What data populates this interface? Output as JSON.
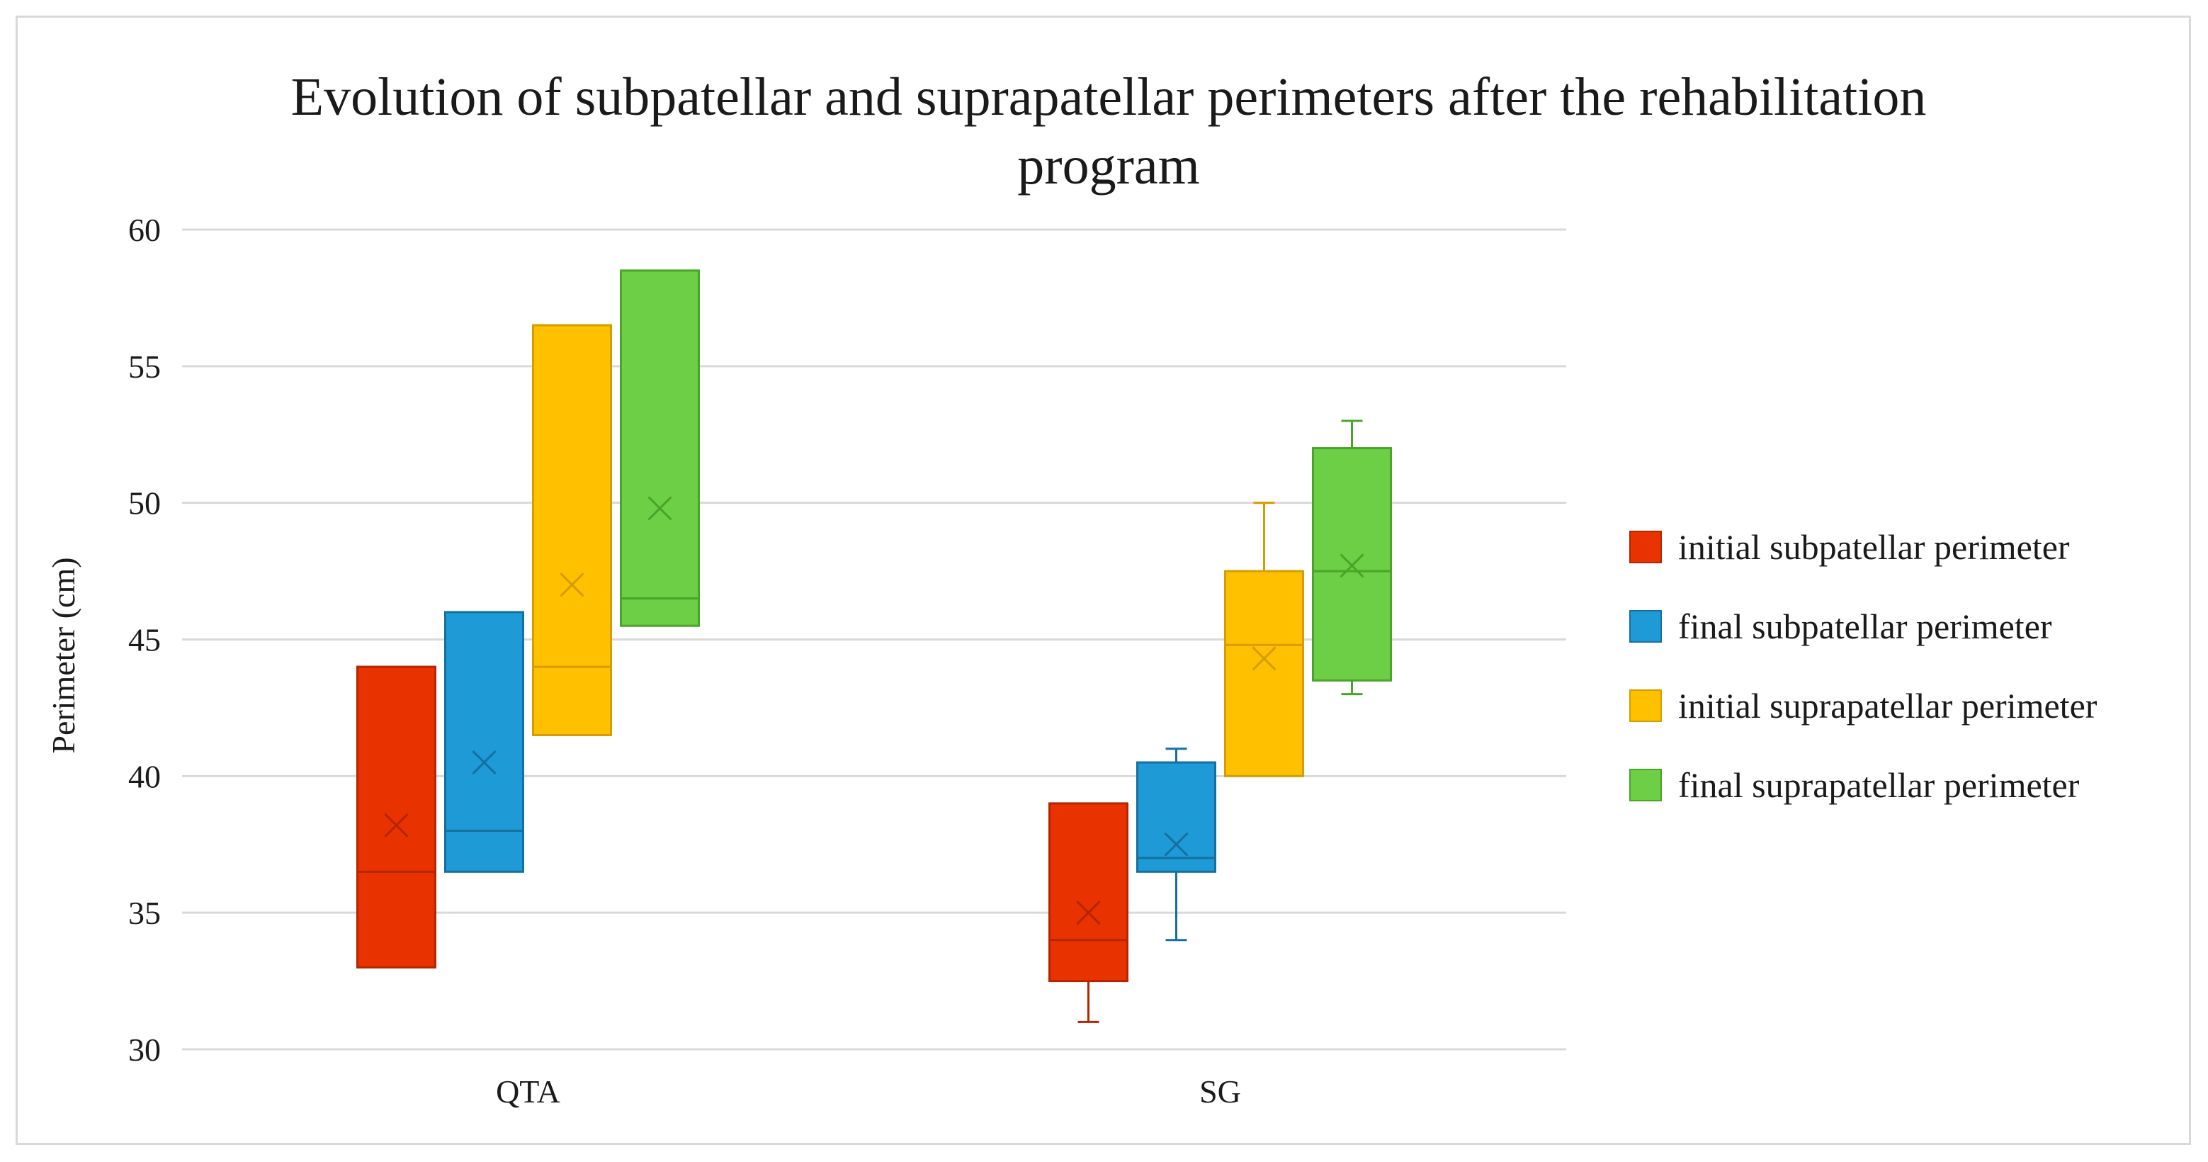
{
  "chart_data": {
    "type": "boxplot",
    "title_line1": "Evolution of subpatellar and suprapatellar perimeters after the rehabilitation",
    "title_line2": "program",
    "ylabel": "Perimeter (cm)",
    "xlabel": "",
    "ylim": [
      30,
      60
    ],
    "yticks": [
      30,
      35,
      40,
      45,
      50,
      55,
      60
    ],
    "categories": [
      "QTA",
      "SG"
    ],
    "grid": true,
    "legend_position": "right",
    "series": [
      {
        "name": "initial subpatellar perimeter",
        "color": "#e83200",
        "edge": "#b52600",
        "boxes": [
          {
            "min": 33,
            "q1": 33,
            "median": 36.5,
            "mean": 38.2,
            "q3": 44,
            "max": 44
          },
          {
            "min": 31,
            "q1": 32.5,
            "median": 34,
            "mean": 35,
            "q3": 39,
            "max": 39
          }
        ]
      },
      {
        "name": "final subpatellar perimeter",
        "color": "#1e9ad6",
        "edge": "#1570a0",
        "boxes": [
          {
            "min": 36.5,
            "q1": 36.5,
            "median": 38,
            "mean": 40.5,
            "q3": 46,
            "max": 46
          },
          {
            "min": 34,
            "q1": 36.5,
            "median": 37,
            "mean": 37.5,
            "q3": 40.5,
            "max": 41
          }
        ]
      },
      {
        "name": "initial suprapatellar perimeter",
        "color": "#ffc000",
        "edge": "#d49d00",
        "boxes": [
          {
            "min": 41.5,
            "q1": 41.5,
            "median": 44,
            "mean": 47,
            "q3": 56.5,
            "max": 56.5
          },
          {
            "min": 40,
            "q1": 40,
            "median": 44.8,
            "mean": 44.3,
            "q3": 47.5,
            "max": 50
          }
        ]
      },
      {
        "name": "final suprapatellar perimeter",
        "color": "#6dcf45",
        "edge": "#4aa32a",
        "boxes": [
          {
            "min": 45.5,
            "q1": 45.5,
            "median": 46.5,
            "mean": 49.8,
            "q3": 58.5,
            "max": 58.5
          },
          {
            "min": 43,
            "q1": 43.5,
            "median": 47.5,
            "mean": 47.7,
            "q3": 52,
            "max": 53
          }
        ]
      }
    ]
  }
}
